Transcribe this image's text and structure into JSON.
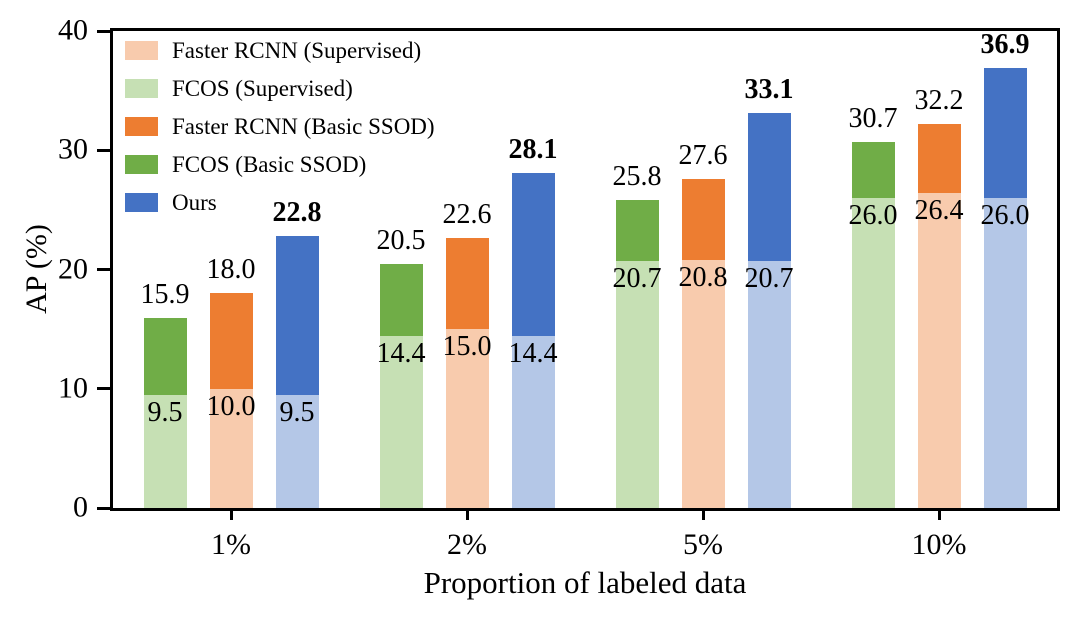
{
  "figure": {
    "background": "#ffffff",
    "text_color": "#000000",
    "spine_color": "#000000"
  },
  "chart_data": {
    "type": "bar",
    "variant": "grouped-stacked",
    "title": "",
    "xlabel": "Proportion of labeled data",
    "ylabel": "AP (%)",
    "ylim": [
      0,
      40
    ],
    "yticks": [
      0,
      10,
      20,
      30,
      40
    ],
    "categories": [
      "1%",
      "2%",
      "5%",
      "10%"
    ],
    "grid": false,
    "legend_position": "upper-left-inside",
    "legend": [
      {
        "label": "Faster RCNN (Supervised)",
        "color": "#F8CBAD"
      },
      {
        "label": "FCOS (Supervised)",
        "color": "#C6E0B4"
      },
      {
        "label": "Faster RCNN (Basic SSOD)",
        "color": "#ED7D31"
      },
      {
        "label": "FCOS (Basic SSOD)",
        "color": "#70AD47"
      },
      {
        "label": "Ours",
        "color": "#4472C4"
      }
    ],
    "series": [
      {
        "name": "FCOS",
        "base_color": "#C6E0B4",
        "top_color": "#70AD47",
        "base_values": [
          9.5,
          14.4,
          20.7,
          26.0
        ],
        "total_values": [
          15.9,
          20.5,
          25.8,
          30.7
        ],
        "bold_totals": false
      },
      {
        "name": "Faster RCNN",
        "base_color": "#F8CBAD",
        "top_color": "#ED7D31",
        "base_values": [
          10.0,
          15.0,
          20.8,
          26.4
        ],
        "total_values": [
          18.0,
          22.6,
          27.6,
          32.2
        ],
        "bold_totals": false
      },
      {
        "name": "Ours",
        "base_color": "#B4C7E7",
        "top_color": "#4472C4",
        "base_values": [
          9.5,
          14.4,
          20.7,
          26.0
        ],
        "total_values": [
          22.8,
          28.1,
          33.1,
          36.9
        ],
        "bold_totals": true
      }
    ]
  }
}
